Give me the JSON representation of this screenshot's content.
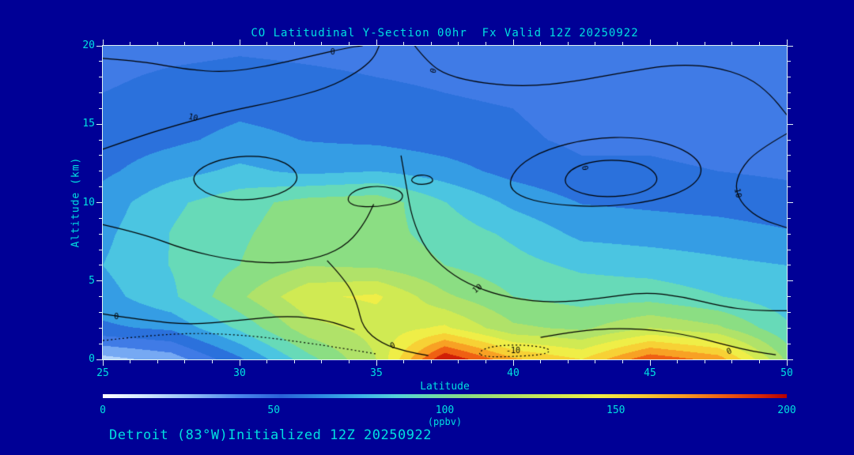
{
  "title": "CO Latitudinal Y-Section 00hr  Fx Valid 12Z 20250922",
  "footer": "Detroit (83°W)Initialized 12Z 20250922",
  "colors": {
    "background": "#000096",
    "text": "#00e0e0",
    "axis": "#e0f2f4",
    "contour_line": "#000000"
  },
  "axes": {
    "x": {
      "label": "Latitude",
      "min": 25,
      "max": 50,
      "major_ticks": [
        25,
        30,
        35,
        40,
        45,
        50
      ],
      "minor_step": 1
    },
    "y": {
      "label": "Altitude (km)",
      "min": 0,
      "max": 20,
      "major_ticks": [
        0,
        5,
        10,
        15,
        20
      ],
      "minor_step": 1
    }
  },
  "colorbar": {
    "min": 0,
    "max": 200,
    "tick_labels": [
      0,
      50,
      100,
      150,
      200
    ],
    "units": "(ppbv)"
  },
  "chart_data": {
    "type": "heatmap",
    "title": "CO Latitudinal Y-Section 00hr  Fx Valid 12Z 20250922",
    "xlabel": "Latitude",
    "ylabel": "Altitude (km)",
    "value_units": "ppbv",
    "xlim": [
      25,
      50
    ],
    "ylim": [
      0,
      20
    ],
    "x_lats": [
      25,
      27.5,
      30,
      32.5,
      35,
      37.5,
      40,
      42.5,
      45,
      47.5,
      50
    ],
    "y_alts_km": [
      0,
      2,
      4,
      6,
      8,
      10,
      12,
      14,
      16,
      18,
      20
    ],
    "co_ppbv": [
      [
        20,
        30,
        60,
        95,
        125,
        200,
        165,
        150,
        185,
        170,
        110
      ],
      [
        60,
        65,
        90,
        120,
        130,
        140,
        115,
        110,
        125,
        115,
        90
      ],
      [
        70,
        85,
        110,
        135,
        140,
        115,
        100,
        95,
        95,
        88,
        80
      ],
      [
        75,
        88,
        100,
        112,
        110,
        100,
        92,
        85,
        82,
        78,
        75
      ],
      [
        72,
        88,
        98,
        108,
        105,
        95,
        85,
        72,
        70,
        68,
        64
      ],
      [
        68,
        85,
        95,
        105,
        108,
        88,
        72,
        62,
        60,
        58,
        55
      ],
      [
        60,
        70,
        78,
        72,
        75,
        68,
        58,
        52,
        52,
        50,
        48
      ],
      [
        56,
        60,
        66,
        62,
        60,
        56,
        52,
        48,
        48,
        46,
        45
      ],
      [
        52,
        56,
        60,
        58,
        55,
        52,
        50,
        46,
        45,
        44,
        43
      ],
      [
        48,
        52,
        54,
        52,
        50,
        48,
        46,
        44,
        42,
        41,
        40
      ],
      [
        44,
        46,
        48,
        47,
        46,
        45,
        43,
        42,
        40,
        39,
        38
      ]
    ],
    "fill_level_step": 12.5,
    "colormap_stops": [
      [
        0,
        "#ffffff"
      ],
      [
        12,
        "#d2e8ff"
      ],
      [
        25,
        "#96c2f8"
      ],
      [
        40,
        "#4a86ec"
      ],
      [
        52,
        "#2a62d8"
      ],
      [
        64,
        "#2e8ce2"
      ],
      [
        76,
        "#3fb6e8"
      ],
      [
        86,
        "#55d2da"
      ],
      [
        96,
        "#6cdcae"
      ],
      [
        106,
        "#8ade84"
      ],
      [
        118,
        "#aee26a"
      ],
      [
        132,
        "#d2ea52"
      ],
      [
        145,
        "#f2ee46"
      ],
      [
        158,
        "#f8cc32"
      ],
      [
        170,
        "#f89c22"
      ],
      [
        182,
        "#ee5c12"
      ],
      [
        192,
        "#d82808"
      ],
      [
        200,
        "#b40000"
      ]
    ],
    "contours": [
      {
        "level": 0,
        "style": "solid",
        "closed": false,
        "label": "0",
        "label_at": [
          33.4,
          19.6
        ],
        "label_rot": 0,
        "points": [
          [
            25,
            19.2
          ],
          [
            26.5,
            19.0
          ],
          [
            28,
            18.5
          ],
          [
            29.5,
            18.3
          ],
          [
            31,
            18.7
          ],
          [
            32.5,
            19.3
          ],
          [
            34,
            19.9
          ],
          [
            34.5,
            20
          ]
        ]
      },
      {
        "level": 10,
        "style": "solid",
        "closed": false,
        "label": "10",
        "label_at": [
          28.3,
          15.4
        ],
        "label_rot": 14,
        "points": [
          [
            25,
            13.4
          ],
          [
            26.3,
            14.2
          ],
          [
            27.8,
            15.0
          ],
          [
            29.5,
            15.8
          ],
          [
            31.5,
            16.5
          ],
          [
            33.2,
            17.3
          ],
          [
            34.3,
            18.3
          ],
          [
            34.9,
            19.2
          ],
          [
            35.1,
            20
          ]
        ]
      },
      {
        "level": 0,
        "style": "solid",
        "closed": false,
        "label": "0",
        "label_at": [
          37.1,
          18.4
        ],
        "label_rot": -70,
        "points": [
          [
            36.4,
            20
          ],
          [
            36.9,
            18.9
          ],
          [
            37.6,
            18.1
          ],
          [
            38.9,
            17.6
          ],
          [
            40.5,
            17.4
          ],
          [
            42.2,
            17.7
          ],
          [
            44,
            18.3
          ],
          [
            45.8,
            18.8
          ],
          [
            47.3,
            18.7
          ],
          [
            48.6,
            18.0
          ],
          [
            49.4,
            16.9
          ],
          [
            50,
            15.6
          ]
        ]
      },
      {
        "level": 10,
        "style": "solid",
        "closed": false,
        "label": "10",
        "label_at": [
          48.2,
          10.6
        ],
        "label_rot": 80,
        "points": [
          [
            50,
            14.4
          ],
          [
            48.9,
            13.3
          ],
          [
            48.3,
            12.1
          ],
          [
            48.1,
            10.9
          ],
          [
            48.4,
            9.8
          ],
          [
            49.1,
            8.9
          ],
          [
            50,
            8.4
          ]
        ]
      },
      {
        "level": 0,
        "style": "solid",
        "closed": true,
        "label": null,
        "label_at": null,
        "label_rot": 0,
        "points": [
          [
            28.2,
            11.4
          ],
          [
            28.6,
            12.3
          ],
          [
            29.6,
            12.9
          ],
          [
            30.9,
            13.0
          ],
          [
            31.9,
            12.4
          ],
          [
            32.2,
            11.4
          ],
          [
            31.5,
            10.5
          ],
          [
            30.2,
            10.1
          ],
          [
            28.9,
            10.4
          ]
        ]
      },
      {
        "level": 0,
        "style": "solid",
        "closed": true,
        "label": null,
        "label_at": null,
        "label_rot": 0,
        "points": [
          [
            33.9,
            10.3
          ],
          [
            34.3,
            10.9
          ],
          [
            35.2,
            11.1
          ],
          [
            36.0,
            10.7
          ],
          [
            35.9,
            10.0
          ],
          [
            34.9,
            9.7
          ],
          [
            34.1,
            9.8
          ]
        ]
      },
      {
        "level": 0,
        "style": "solid",
        "closed": true,
        "label": null,
        "label_at": null,
        "label_rot": 0,
        "points": [
          [
            36.2,
            11.4
          ],
          [
            36.5,
            11.8
          ],
          [
            37.0,
            11.7
          ],
          [
            37.1,
            11.3
          ],
          [
            36.6,
            11.1
          ]
        ]
      },
      {
        "level": 0,
        "style": "solid",
        "closed": true,
        "label": "0",
        "label_at": [
          42.6,
          12.2
        ],
        "label_rot": 80,
        "points": [
          [
            39.8,
            11.2
          ],
          [
            40.2,
            12.4
          ],
          [
            41.2,
            13.4
          ],
          [
            42.8,
            14.1
          ],
          [
            44.6,
            14.2
          ],
          [
            46.2,
            13.5
          ],
          [
            47.0,
            12.3
          ],
          [
            46.6,
            11.0
          ],
          [
            45.2,
            10.1
          ],
          [
            43.2,
            9.7
          ],
          [
            41.3,
            9.9
          ],
          [
            40.2,
            10.4
          ]
        ]
      },
      {
        "level": 10,
        "style": "solid",
        "closed": true,
        "label": null,
        "label_at": null,
        "label_rot": 0,
        "points": [
          [
            41.8,
            11.4
          ],
          [
            42.2,
            12.3
          ],
          [
            43.4,
            12.8
          ],
          [
            44.8,
            12.5
          ],
          [
            45.4,
            11.5
          ],
          [
            44.8,
            10.6
          ],
          [
            43.3,
            10.3
          ],
          [
            42.2,
            10.7
          ]
        ]
      },
      {
        "level": 10,
        "style": "solid",
        "closed": false,
        "label": "10",
        "label_at": [
          38.7,
          4.5
        ],
        "label_rot": -40,
        "points": [
          [
            35.9,
            13.0
          ],
          [
            36.1,
            11.0
          ],
          [
            36.3,
            9.0
          ],
          [
            36.8,
            7.0
          ],
          [
            37.6,
            5.6
          ],
          [
            38.6,
            4.6
          ],
          [
            39.9,
            3.9
          ],
          [
            41.5,
            3.6
          ],
          [
            43.2,
            3.9
          ],
          [
            44.8,
            4.3
          ],
          [
            46.2,
            4.0
          ],
          [
            47.6,
            3.4
          ],
          [
            48.8,
            3.1
          ],
          [
            50,
            3.1
          ]
        ]
      },
      {
        "level": 0,
        "style": "solid",
        "closed": false,
        "label": null,
        "label_at": null,
        "label_rot": 0,
        "points": [
          [
            25,
            8.6
          ],
          [
            26.5,
            8.0
          ],
          [
            28,
            7.0
          ],
          [
            29.8,
            6.3
          ],
          [
            31.5,
            6.1
          ],
          [
            33.0,
            6.5
          ],
          [
            34.0,
            7.4
          ],
          [
            34.6,
            8.8
          ],
          [
            34.9,
            9.9
          ]
        ]
      },
      {
        "level": 0,
        "style": "solid",
        "closed": false,
        "label": "0",
        "label_at": [
          35.6,
          0.85
        ],
        "label_rot": -20,
        "points": [
          [
            33.2,
            6.3
          ],
          [
            33.9,
            5.0
          ],
          [
            34.3,
            3.6
          ],
          [
            34.5,
            2.0
          ],
          [
            35.2,
            1.0
          ],
          [
            36.1,
            0.5
          ],
          [
            36.9,
            0.25
          ]
        ]
      },
      {
        "level": 0,
        "style": "solid",
        "closed": false,
        "label": "0",
        "label_at": [
          25.5,
          2.7
        ],
        "label_rot": 0,
        "points": [
          [
            25,
            2.9
          ],
          [
            26.5,
            2.5
          ],
          [
            28.2,
            2.2
          ],
          [
            30,
            2.5
          ],
          [
            31.8,
            2.8
          ],
          [
            33.2,
            2.5
          ],
          [
            34.2,
            1.9
          ]
        ]
      },
      {
        "level": -10,
        "style": "dotted",
        "closed": false,
        "label": null,
        "label_at": null,
        "label_rot": 0,
        "points": [
          [
            25,
            1.2
          ],
          [
            26.5,
            1.5
          ],
          [
            28.5,
            1.7
          ],
          [
            30.5,
            1.5
          ],
          [
            32.3,
            1.1
          ],
          [
            33.8,
            0.7
          ],
          [
            35.0,
            0.35
          ]
        ]
      },
      {
        "level": -10,
        "style": "dotted",
        "closed": true,
        "label": "-10",
        "label_at": [
          40.0,
          0.55
        ],
        "label_rot": 0,
        "points": [
          [
            38.7,
            0.45
          ],
          [
            39.2,
            0.85
          ],
          [
            40.3,
            0.95
          ],
          [
            41.4,
            0.7
          ],
          [
            41.2,
            0.3
          ],
          [
            39.6,
            0.15
          ],
          [
            38.9,
            0.2
          ]
        ]
      },
      {
        "level": 0,
        "style": "solid",
        "closed": false,
        "label": "0",
        "label_at": [
          47.9,
          0.5
        ],
        "label_rot": -25,
        "points": [
          [
            41.0,
            1.4
          ],
          [
            42.5,
            1.9
          ],
          [
            44.5,
            2.0
          ],
          [
            46.3,
            1.6
          ],
          [
            47.8,
            0.9
          ],
          [
            48.8,
            0.5
          ],
          [
            49.6,
            0.3
          ]
        ]
      }
    ]
  }
}
